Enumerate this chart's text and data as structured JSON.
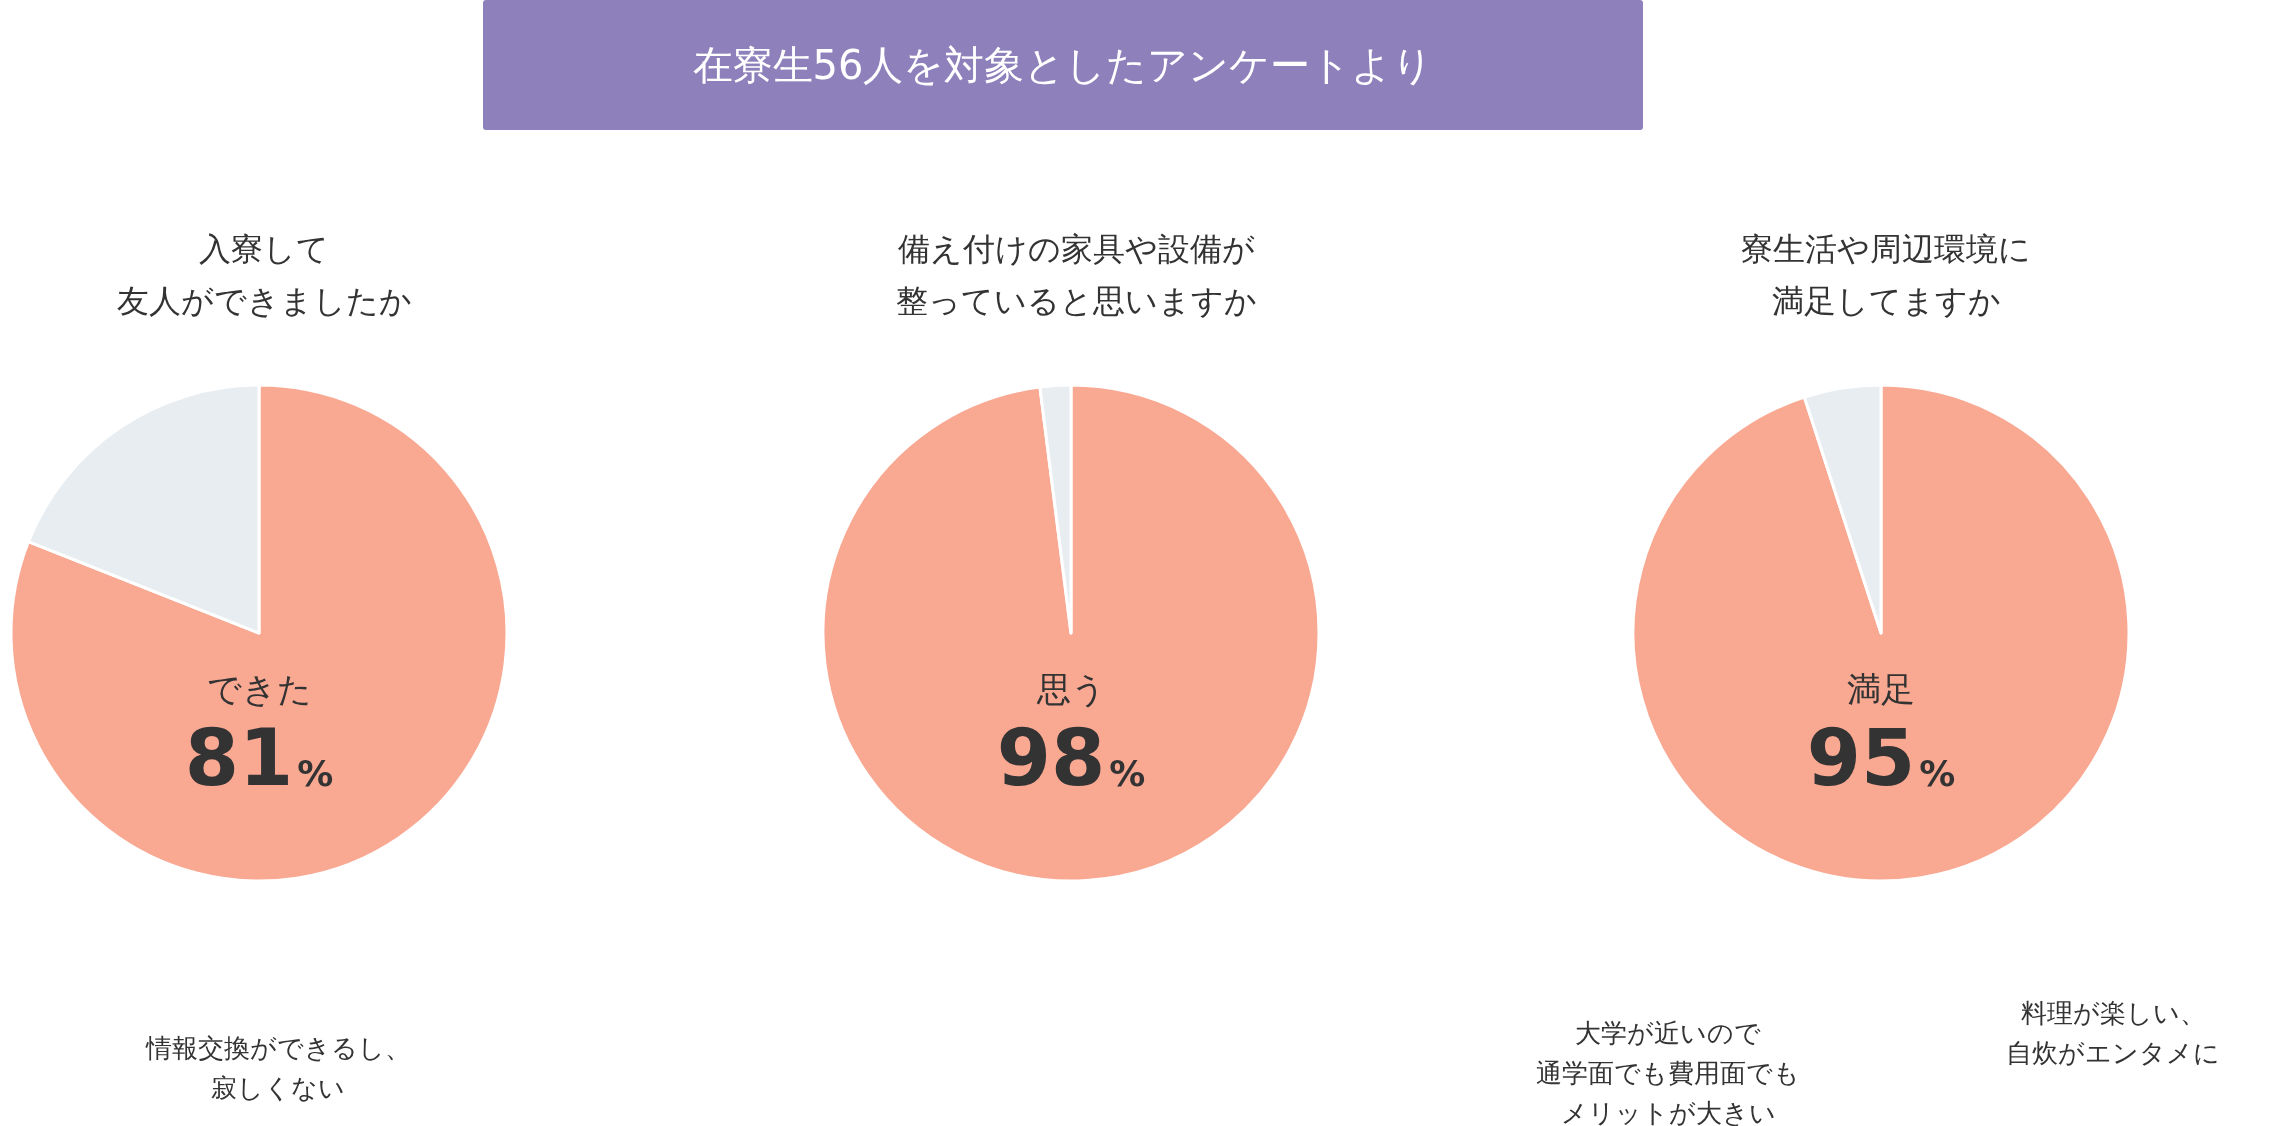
{
  "chart_data": [
    {
      "type": "other",
      "title": "在寮生56人を対象としたアンケートより",
      "color": "#8e80bb"
    },
    {
      "type": "pie",
      "title": "入寮して友人ができましたか",
      "categories": [
        "できた",
        null
      ],
      "values": [
        81,
        19
      ],
      "colors": [
        "#f9a892",
        "#e8edf2"
      ],
      "value_labels": [
        "81%",
        null
      ],
      "annotations": [
        "情報交換ができるし、寂しくない"
      ]
    },
    {
      "type": "pie",
      "title": "備え付けの家具や設備が整っていると思いますか",
      "categories": [
        "思う",
        null
      ],
      "values": [
        98,
        2
      ],
      "colors": [
        "#f9a892",
        "#e8edf2"
      ],
      "value_labels": [
        "98%",
        null
      ]
    },
    {
      "type": "pie",
      "title": "寮生活や周辺環境に満足してますか",
      "categories": [
        "満足",
        null
      ],
      "values": [
        95,
        5
      ],
      "colors": [
        "#f9a892",
        "#e8edf2"
      ],
      "value_labels": [
        "95%",
        null
      ],
      "annotations": [
        "大学が近いので通学面でも費用面でもメリットが大きい",
        "料理が楽しい、自炊がエンタメに"
      ]
    }
  ]
}
